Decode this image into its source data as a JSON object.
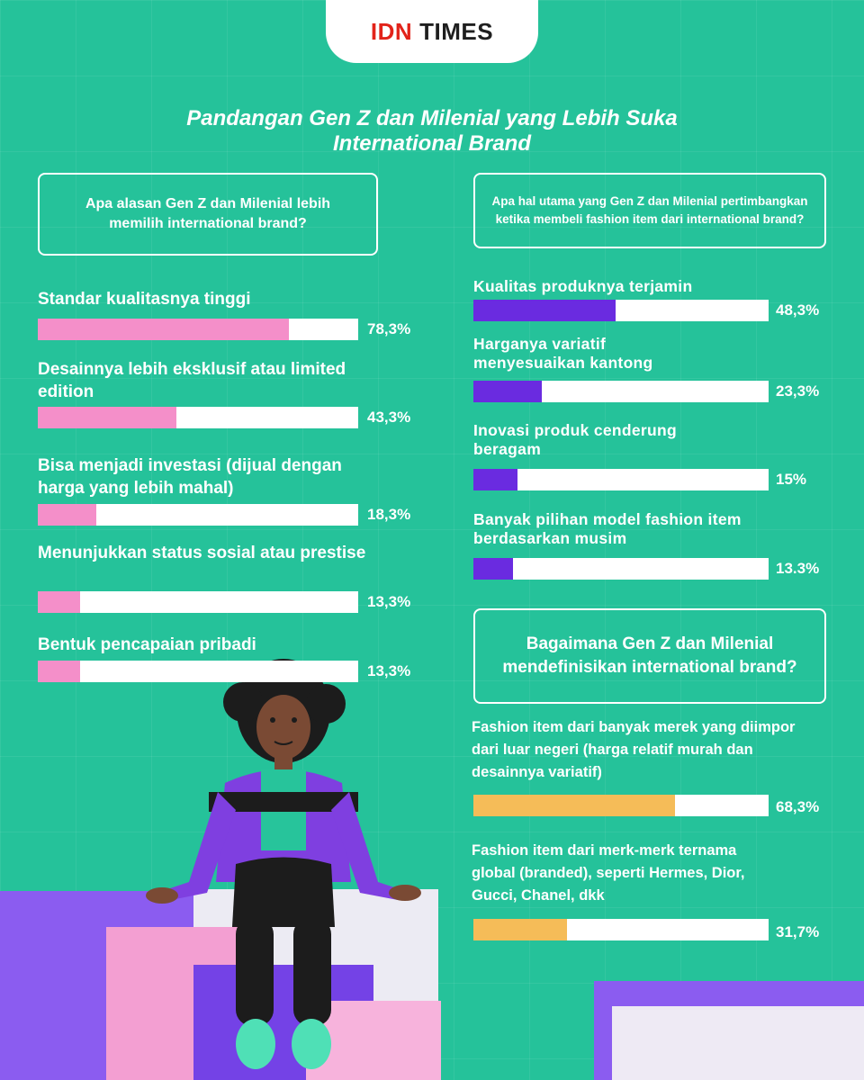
{
  "logo": {
    "part1": "IDN",
    "part2": "TIMES"
  },
  "title": "Pandangan Gen Z dan Milenial yang Lebih Suka\nInternational Brand",
  "colors": {
    "background": "#25c29a",
    "pink": "#f48fc9",
    "purple": "#6a2be0",
    "yellow": "#f5bc58",
    "track": "#ffffff"
  },
  "chart_data": [
    {
      "type": "bar",
      "title": "Apa alasan Gen Z dan Milenial lebih memilih international brand?",
      "categories": [
        "Standar kualitasnya tinggi",
        "Desainnya lebih eksklusif atau limited edition",
        "Bisa menjadi investasi (dijual dengan harga yang lebih mahal)",
        "Menunjukkan status sosial atau prestise",
        "Bentuk pencapaian pribadi"
      ],
      "values": [
        78.3,
        43.3,
        18.3,
        13.3,
        13.3
      ],
      "value_labels": [
        "78,3%",
        "43,3%",
        "18,3%",
        "13,3%",
        "13,3%"
      ],
      "ylim": [
        0,
        100
      ],
      "color": "#f48fc9"
    },
    {
      "type": "bar",
      "title": "Apa hal utama yang Gen Z dan Milenial pertimbangkan ketika membeli fashion item dari international brand?",
      "categories": [
        "Kualitas produknya terjamin",
        "Harganya variatif menyesuaikan kantong",
        "Inovasi produk cenderung beragam",
        "Banyak pilihan model fashion item berdasarkan musim"
      ],
      "values": [
        48.3,
        23.3,
        15,
        13.3
      ],
      "value_labels": [
        "48,3%",
        "23,3%",
        "15%",
        "13.3%"
      ],
      "ylim": [
        0,
        100
      ],
      "color": "#6a2be0"
    },
    {
      "type": "bar",
      "title": "Bagaimana Gen Z dan Milenial mendefinisikan international brand?",
      "categories": [
        "Fashion item dari banyak merek yang diimpor dari luar negeri (harga relatif murah dan desainnya variatif)",
        "Fashion item dari merk-merk ternama global (branded), seperti Hermes, Dior, Gucci, Chanel, dkk"
      ],
      "values": [
        68.3,
        31.7
      ],
      "value_labels": [
        "68,3%",
        "31,7%"
      ],
      "ylim": [
        0,
        100
      ],
      "color": "#f5bc58"
    }
  ]
}
